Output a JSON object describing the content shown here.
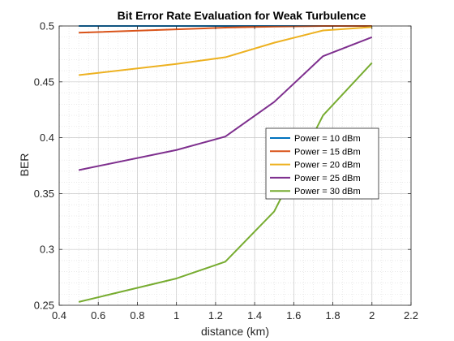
{
  "chart_data": {
    "type": "line",
    "title": "Bit Error Rate Evaluation for Weak Turbulence",
    "xlabel": "distance (km)",
    "ylabel": "BER",
    "xlim": [
      0.4,
      2.2
    ],
    "ylim": [
      0.25,
      0.5
    ],
    "xticks": [
      "0.4",
      "0.6",
      "0.8",
      "1",
      "1.2",
      "1.4",
      "1.6",
      "1.8",
      "2",
      "2.2"
    ],
    "yticks": [
      "0.25",
      "0.3",
      "0.35",
      "0.4",
      "0.45",
      "0.5"
    ],
    "grid": true,
    "minor_grid": true,
    "legend_position": "center-right",
    "x": [
      0.5,
      1.0,
      1.25,
      1.5,
      1.75,
      2.0
    ],
    "series": [
      {
        "name": "Power = 10 dBm",
        "color": "#0072BD",
        "values": [
          0.5,
          0.5,
          0.5,
          0.5,
          0.5,
          0.5
        ]
      },
      {
        "name": "Power = 15 dBm",
        "color": "#D95319",
        "values": [
          0.494,
          0.497,
          0.4985,
          0.4995,
          0.5,
          0.5
        ]
      },
      {
        "name": "Power = 20 dBm",
        "color": "#EDB120",
        "values": [
          0.456,
          0.466,
          0.472,
          0.485,
          0.496,
          0.499
        ]
      },
      {
        "name": "Power = 25 dBm",
        "color": "#7E2F8E",
        "values": [
          0.371,
          0.389,
          0.401,
          0.432,
          0.473,
          0.49
        ]
      },
      {
        "name": "Power = 30 dBm",
        "color": "#77AC30",
        "values": [
          0.253,
          0.274,
          0.289,
          0.334,
          0.42,
          0.467
        ]
      }
    ]
  }
}
